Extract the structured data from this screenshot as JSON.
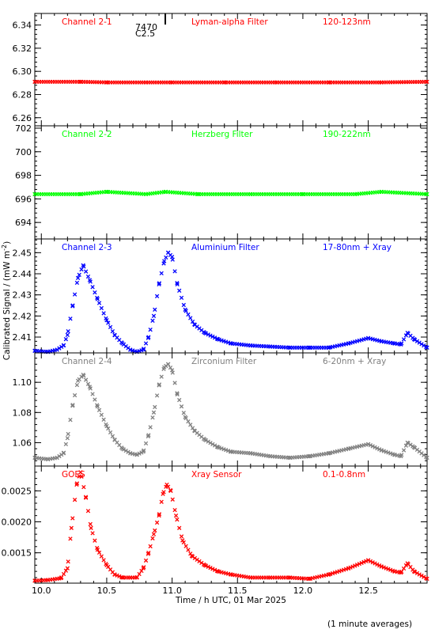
{
  "figure": {
    "xlabel": "Time / h UTC, 01 Mar 2025",
    "ylabel": "Calibrated Signal / (mW m",
    "ylabel_sup": "-2",
    "ylabel_close": ")",
    "footnote": "(1 minute averages)",
    "marker_annotation": {
      "line1": "7470",
      "line2": "C2.5",
      "x": 10.95
    }
  },
  "chart_data": [
    {
      "type": "scatter",
      "channel": "Channel 2-1",
      "filter": "Lyman-alpha Filter",
      "band": "120-123nm",
      "color": "#ff0000",
      "xlim": [
        9.95,
        12.95
      ],
      "ylim": [
        6.253,
        6.35
      ],
      "xticks": [
        10.0,
        10.5,
        11.0,
        11.5,
        12.0,
        12.5
      ],
      "yticks": [
        6.26,
        6.28,
        6.3,
        6.32,
        6.34
      ],
      "ytick_labels": [
        "6.26",
        "6.28",
        "6.30",
        "6.32",
        "6.34"
      ],
      "x": [
        9.95,
        10.3,
        10.5,
        10.8,
        11.0,
        11.4,
        11.8,
        12.2,
        12.6,
        12.95
      ],
      "y": [
        6.291,
        6.291,
        6.2905,
        6.2905,
        6.2905,
        6.2905,
        6.2905,
        6.2905,
        6.2905,
        6.291
      ]
    },
    {
      "type": "scatter",
      "channel": "Channel 2-2",
      "filter": "Herzberg Filter",
      "band": "190-222nm",
      "color": "#00ff00",
      "xlim": [
        9.95,
        12.95
      ],
      "ylim": [
        692.6,
        702.2
      ],
      "xticks": [
        10.0,
        10.5,
        11.0,
        11.5,
        12.0,
        12.5
      ],
      "yticks": [
        694,
        696,
        698,
        700,
        702
      ],
      "ytick_labels": [
        "694",
        "696",
        "698",
        "700",
        "702"
      ],
      "x": [
        9.95,
        10.3,
        10.5,
        10.8,
        10.95,
        11.2,
        11.6,
        12.0,
        12.4,
        12.6,
        12.95
      ],
      "y": [
        696.4,
        696.4,
        696.6,
        696.4,
        696.6,
        696.4,
        696.4,
        696.4,
        696.4,
        696.6,
        696.4
      ]
    },
    {
      "type": "scatter",
      "channel": "Channel 2-3",
      "filter": "Aluminium Filter",
      "band": "17-80nm + Xray",
      "color": "#0000ff",
      "xlim": [
        9.95,
        12.95
      ],
      "ylim": [
        2.4025,
        2.4565
      ],
      "xticks": [
        10.0,
        10.5,
        11.0,
        11.5,
        12.0,
        12.5
      ],
      "yticks": [
        2.41,
        2.42,
        2.43,
        2.44,
        2.45
      ],
      "ytick_labels": [
        "2.41",
        "2.42",
        "2.43",
        "2.44",
        "2.45"
      ],
      "x": [
        9.95,
        10.05,
        10.12,
        10.17,
        10.2,
        10.24,
        10.28,
        10.32,
        10.37,
        10.43,
        10.5,
        10.56,
        10.62,
        10.68,
        10.73,
        10.78,
        10.82,
        10.86,
        10.9,
        10.94,
        10.97,
        11.0,
        11.04,
        11.1,
        11.17,
        11.25,
        11.35,
        11.45,
        11.6,
        11.75,
        11.9,
        12.05,
        12.2,
        12.35,
        12.5,
        12.6,
        12.7,
        12.75,
        12.8,
        12.85,
        12.95
      ],
      "y": [
        2.4035,
        2.403,
        2.404,
        2.406,
        2.411,
        2.425,
        2.438,
        2.444,
        2.437,
        2.428,
        2.418,
        2.411,
        2.407,
        2.404,
        2.403,
        2.404,
        2.41,
        2.42,
        2.435,
        2.446,
        2.45,
        2.448,
        2.435,
        2.423,
        2.416,
        2.412,
        2.409,
        2.407,
        2.406,
        2.4055,
        2.405,
        2.405,
        2.405,
        2.407,
        2.4095,
        2.408,
        2.407,
        2.4065,
        2.412,
        2.409,
        2.405
      ]
    },
    {
      "type": "scatter",
      "channel": "Channel 2-4",
      "filter": "Zirconium Filter",
      "band": "6-20nm + Xray",
      "color": "#808080",
      "xlim": [
        9.95,
        12.95
      ],
      "ylim": [
        1.0445,
        1.1195
      ],
      "xticks": [
        10.0,
        10.5,
        11.0,
        11.5,
        12.0,
        12.5
      ],
      "yticks": [
        1.06,
        1.08,
        1.1
      ],
      "ytick_labels": [
        "1.06",
        "1.08",
        "1.10"
      ],
      "x": [
        9.95,
        10.05,
        10.12,
        10.17,
        10.2,
        10.24,
        10.28,
        10.32,
        10.37,
        10.43,
        10.5,
        10.56,
        10.62,
        10.68,
        10.73,
        10.78,
        10.82,
        10.86,
        10.9,
        10.94,
        10.97,
        11.0,
        11.04,
        11.1,
        11.17,
        11.25,
        11.35,
        11.45,
        11.6,
        11.75,
        11.9,
        12.05,
        12.2,
        12.35,
        12.5,
        12.6,
        12.7,
        12.75,
        12.8,
        12.85,
        12.95
      ],
      "y": [
        1.05,
        1.049,
        1.05,
        1.053,
        1.063,
        1.085,
        1.101,
        1.105,
        1.097,
        1.084,
        1.071,
        1.062,
        1.056,
        1.053,
        1.052,
        1.054,
        1.065,
        1.08,
        1.098,
        1.11,
        1.112,
        1.108,
        1.092,
        1.077,
        1.068,
        1.062,
        1.057,
        1.054,
        1.053,
        1.051,
        1.05,
        1.051,
        1.053,
        1.056,
        1.059,
        1.055,
        1.052,
        1.051,
        1.06,
        1.057,
        1.05
      ]
    },
    {
      "type": "scatter",
      "channel": "GOES",
      "filter": "Xray Sensor",
      "band": "0.1-0.8nm",
      "color": "#ff0000",
      "xlim": [
        9.95,
        12.95
      ],
      "ylim": [
        0.00101,
        0.0029
      ],
      "xticks": [
        10.0,
        10.5,
        11.0,
        11.5,
        12.0,
        12.5
      ],
      "xtick_labels": [
        "10.0",
        "10.5",
        "11.0",
        "11.5",
        "12.0",
        "12.5"
      ],
      "yticks": [
        0.0015,
        0.002,
        0.0025
      ],
      "ytick_labels": [
        "0.0015",
        "0.0020",
        "0.0025"
      ],
      "x": [
        9.95,
        10.05,
        10.15,
        10.2,
        10.23,
        10.27,
        10.3,
        10.34,
        10.38,
        10.43,
        10.5,
        10.56,
        10.62,
        10.68,
        10.73,
        10.78,
        10.82,
        10.86,
        10.9,
        10.93,
        10.96,
        10.99,
        11.03,
        11.08,
        11.15,
        11.25,
        11.35,
        11.45,
        11.6,
        11.75,
        11.9,
        12.05,
        12.2,
        12.35,
        12.5,
        12.6,
        12.7,
        12.75,
        12.8,
        12.85,
        12.95
      ],
      "y": [
        0.00105,
        0.00106,
        0.00109,
        0.00125,
        0.0019,
        0.0026,
        0.0028,
        0.0024,
        0.0019,
        0.00155,
        0.0013,
        0.00115,
        0.0011,
        0.0011,
        0.0011,
        0.00125,
        0.0015,
        0.0018,
        0.0021,
        0.00245,
        0.0026,
        0.0025,
        0.0021,
        0.0017,
        0.00145,
        0.0013,
        0.0012,
        0.00115,
        0.0011,
        0.0011,
        0.0011,
        0.00108,
        0.00115,
        0.00125,
        0.00138,
        0.00128,
        0.0012,
        0.00118,
        0.00133,
        0.0012,
        0.00108
      ]
    }
  ]
}
